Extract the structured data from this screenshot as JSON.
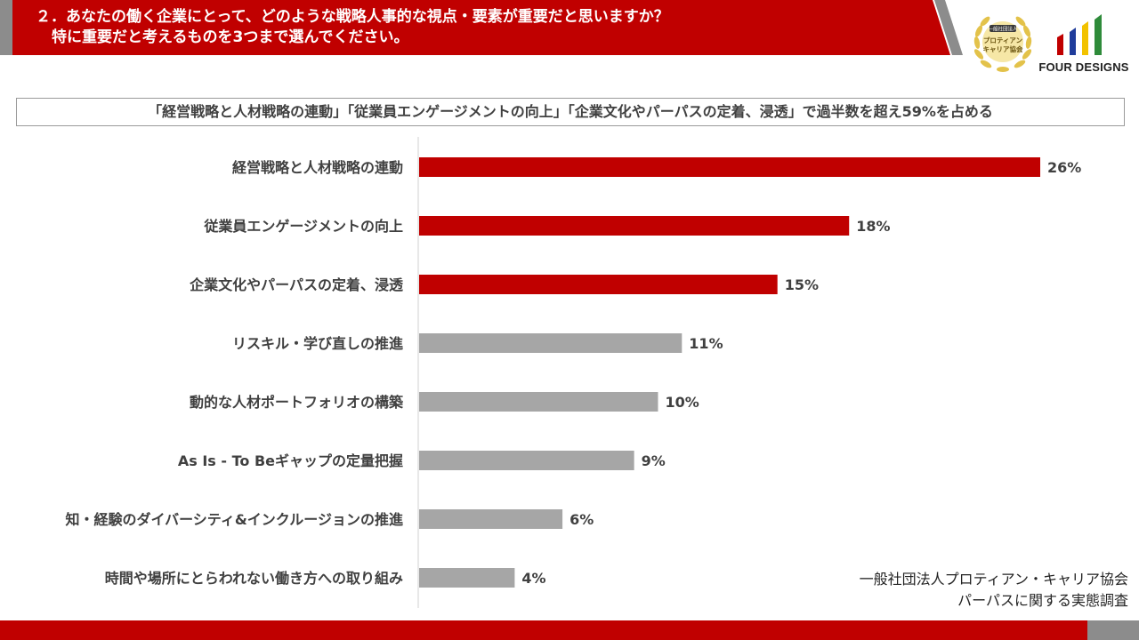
{
  "header": {
    "title_line1": "２．あなたの働く企業にとって、どのような戦略人事的な視点・要素が重要だと思いますか？",
    "title_line2": "特に重要だと考えるものを3つまで選んでください。"
  },
  "logos": {
    "seal_top": "一般社団法人",
    "seal_line1": "プロティアン",
    "seal_line2": "キャリア協会",
    "brand_name": "FOUR DESIGNS"
  },
  "subtitle": "「経営戦略と人材戦略の連動」「従業員エンゲージメントの向上」「企業文化やパーパスの定着、浸透」で過半数を超え59%を占める",
  "chart_data": {
    "type": "bar",
    "orientation": "horizontal",
    "categories": [
      "経営戦略と人材戦略の連動",
      "従業員エンゲージメントの向上",
      "企業文化やパーパスの定着、浸透",
      "リスキル・学び直しの推進",
      "動的な人材ポートフォリオの構築",
      "As Is - To Beギャップの定量把握",
      "知・経験のダイバーシティ&インクルージョンの推進",
      "時間や場所にとらわれない働き方への取り組み"
    ],
    "values": [
      26,
      18,
      15,
      11,
      10,
      9,
      6,
      4
    ],
    "value_labels": [
      "26%",
      "18%",
      "15%",
      "11%",
      "10%",
      "9%",
      "6%",
      "4%"
    ],
    "highlight_count": 3,
    "xlim": [
      0,
      30
    ],
    "grid": false,
    "colors": {
      "highlight": "#c00000",
      "normal": "#a6a6a6",
      "axis": "#d0d0d0"
    }
  },
  "source": {
    "line1": "一般社団法人プロティアン・キャリア協会",
    "line2": "パーパスに関する実態調査"
  },
  "colors": {
    "brand_red": "#c00000",
    "brand_grey": "#8c8c8c",
    "gold": "#e3c24a"
  }
}
